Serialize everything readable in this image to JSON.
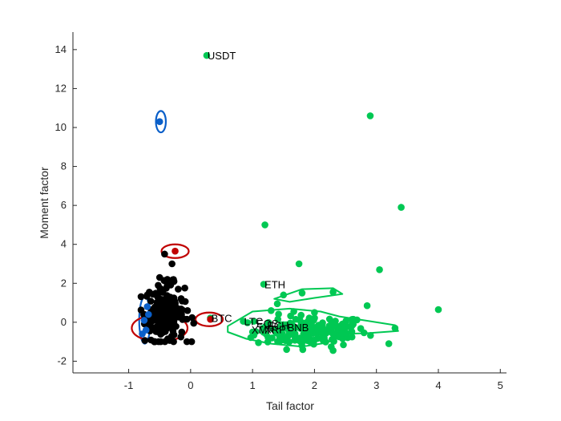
{
  "chart_data": {
    "type": "scatter",
    "xlabel": "Tail factor",
    "ylabel": "Moment factor",
    "xlim": [
      -1.9,
      5.1
    ],
    "ylim": [
      -2.6,
      14.9
    ],
    "xticks": [
      -1,
      0,
      1,
      2,
      3,
      4,
      5
    ],
    "yticks": [
      -2,
      0,
      2,
      4,
      6,
      8,
      10,
      12,
      14
    ],
    "grid": false,
    "colors": {
      "green": "#00c853",
      "blue": "#0a5fc9",
      "red": "#c00000",
      "black": "#000000"
    },
    "labels": [
      {
        "text": "USDT",
        "x": 0.26,
        "y": 13.7
      },
      {
        "text": "ETH",
        "x": 1.18,
        "y": 1.95
      },
      {
        "text": "BTC",
        "x": 0.32,
        "y": 0.22
      },
      {
        "text": "LTC",
        "x": 0.85,
        "y": 0.05
      },
      {
        "text": "EOS",
        "x": 1.05,
        "y": -0.05
      },
      {
        "text": "BCH",
        "x": 1.22,
        "y": -0.15
      },
      {
        "text": "BNB",
        "x": 1.55,
        "y": -0.25
      },
      {
        "text": "XMR",
        "x": 0.97,
        "y": -0.38
      },
      {
        "text": "XRP",
        "x": 1.18,
        "y": -0.35
      }
    ],
    "series": [
      {
        "color": "green",
        "points": [
          [
            0.26,
            13.7
          ],
          [
            2.9,
            10.6
          ],
          [
            3.4,
            5.9
          ],
          [
            1.2,
            5.0
          ],
          [
            1.75,
            3.0
          ],
          [
            3.05,
            2.7
          ],
          [
            1.18,
            1.95
          ],
          [
            4.0,
            0.65
          ],
          [
            2.85,
            0.85
          ],
          [
            2.3,
            1.55
          ],
          [
            1.8,
            1.5
          ],
          [
            1.5,
            1.4
          ],
          [
            1.4,
            0.95
          ],
          [
            1.3,
            0.6
          ],
          [
            0.32,
            0.22
          ],
          [
            0.85,
            0.05
          ],
          [
            3.3,
            -0.3
          ],
          [
            3.2,
            -1.1
          ],
          [
            2.3,
            -1.45
          ],
          [
            1.55,
            -1.4
          ],
          [
            2.6,
            -0.2
          ],
          [
            2.0,
            0.5
          ],
          [
            1.0,
            -0.5
          ]
        ],
        "cluster": {
          "cx": 1.95,
          "cy": -0.45,
          "sx": 0.45,
          "sy": 0.4,
          "n": 170
        }
      },
      {
        "color": "black",
        "points": [
          [
            -0.42,
            3.5
          ],
          [
            -0.3,
            3.0
          ],
          [
            -0.5,
            2.3
          ],
          [
            -0.2,
            1.7
          ],
          [
            -0.05,
            0.6
          ],
          [
            0.05,
            -0.05
          ]
        ],
        "cluster": {
          "cx": -0.42,
          "cy": 0.45,
          "sx": 0.16,
          "sy": 0.75,
          "n": 190
        }
      },
      {
        "color": "blue",
        "points": [
          [
            -0.5,
            10.3
          ],
          [
            -0.7,
            0.8
          ],
          [
            -0.75,
            0.1
          ],
          [
            -0.72,
            -0.4
          ],
          [
            -0.78,
            -0.6
          ],
          [
            -0.68,
            0.4
          ]
        ]
      },
      {
        "color": "red",
        "points": [
          [
            -0.25,
            3.65
          ],
          [
            0.32,
            0.15
          ]
        ]
      }
    ],
    "contours": [
      {
        "color": "blue",
        "type": "ellipse",
        "cx": -0.48,
        "cy": 10.3,
        "rx": 0.08,
        "ry": 0.55
      },
      {
        "color": "blue",
        "type": "ellipse",
        "cx": -0.74,
        "cy": 0.1,
        "rx": 0.09,
        "ry": 1.2
      },
      {
        "color": "red",
        "type": "ellipse",
        "cx": -0.25,
        "cy": 3.65,
        "rx": 0.22,
        "ry": 0.35
      },
      {
        "color": "red",
        "type": "ellipse",
        "cx": 0.3,
        "cy": 0.15,
        "rx": 0.22,
        "ry": 0.35
      },
      {
        "color": "red",
        "type": "ellipse",
        "cx": -0.5,
        "cy": -0.3,
        "rx": 0.45,
        "ry": 0.7
      },
      {
        "color": "green",
        "type": "path",
        "points": [
          [
            0.6,
            -0.2
          ],
          [
            1.0,
            0.55
          ],
          [
            1.6,
            0.7
          ],
          [
            2.1,
            0.55
          ],
          [
            2.4,
            0.3
          ],
          [
            2.9,
            0.05
          ],
          [
            3.3,
            -0.15
          ],
          [
            3.35,
            -0.45
          ],
          [
            2.9,
            -0.55
          ],
          [
            2.5,
            -0.6
          ],
          [
            2.2,
            -1.05
          ],
          [
            1.8,
            -1.25
          ],
          [
            1.3,
            -1.1
          ],
          [
            0.9,
            -0.85
          ],
          [
            0.6,
            -0.5
          ],
          [
            0.6,
            -0.2
          ]
        ]
      },
      {
        "color": "green",
        "type": "path",
        "points": [
          [
            1.35,
            1.2
          ],
          [
            1.8,
            1.7
          ],
          [
            2.3,
            1.75
          ],
          [
            2.45,
            1.45
          ],
          [
            2.0,
            1.25
          ],
          [
            1.6,
            1.05
          ],
          [
            1.35,
            1.2
          ]
        ]
      }
    ]
  }
}
